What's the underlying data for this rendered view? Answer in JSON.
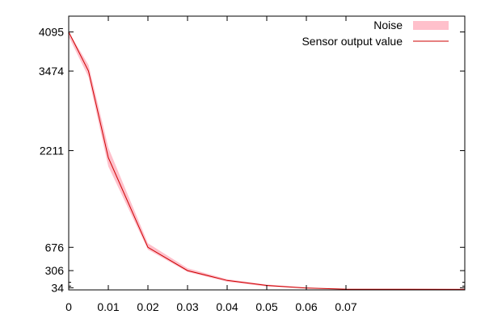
{
  "chart_data": {
    "type": "area",
    "title": "",
    "xlabel": "",
    "ylabel": "",
    "xlim": [
      0,
      0.1
    ],
    "ylim": [
      0,
      4095
    ],
    "grid": false,
    "legend": "top-right",
    "x_ticks": [
      {
        "value": 0,
        "label": "0"
      },
      {
        "value": 0.01,
        "label": "0.01"
      },
      {
        "value": 0.02,
        "label": "0.02"
      },
      {
        "value": 0.03,
        "label": "0.03"
      },
      {
        "value": 0.04,
        "label": "0.04"
      },
      {
        "value": 0.05,
        "label": "0.05"
      },
      {
        "value": 0.06,
        "label": "0.06"
      },
      {
        "value": 0.07,
        "label": "0.07"
      }
    ],
    "y_ticks": [
      {
        "value": 34,
        "label": "34"
      },
      {
        "value": 306,
        "label": "306"
      },
      {
        "value": 676,
        "label": "676"
      },
      {
        "value": 2211,
        "label": "2211"
      },
      {
        "value": 3474,
        "label": "3474"
      },
      {
        "value": 4095,
        "label": "4095"
      }
    ],
    "y_minor_ticks": [
      60,
      120
    ],
    "series": [
      {
        "name": "Noise",
        "kind": "band",
        "color": "#ffc0cb",
        "x": [
          0,
          0.005,
          0.01,
          0.02,
          0.03,
          0.04,
          0.05,
          0.06,
          0.07,
          0.1
        ],
        "lower": [
          4020,
          3380,
          1960,
          640,
          285,
          130,
          55,
          25,
          8,
          0
        ],
        "upper": [
          4095,
          3570,
          2260,
          740,
          345,
          170,
          85,
          40,
          16,
          16
        ]
      },
      {
        "name": "Sensor output value",
        "kind": "line",
        "color": "#cc0000",
        "x": [
          0,
          0.005,
          0.01,
          0.02,
          0.03,
          0.04,
          0.05,
          0.06,
          0.07,
          0.1
        ],
        "y": [
          4095,
          3474,
          2100,
          676,
          306,
          150,
          70,
          30,
          12,
          8
        ]
      }
    ]
  }
}
